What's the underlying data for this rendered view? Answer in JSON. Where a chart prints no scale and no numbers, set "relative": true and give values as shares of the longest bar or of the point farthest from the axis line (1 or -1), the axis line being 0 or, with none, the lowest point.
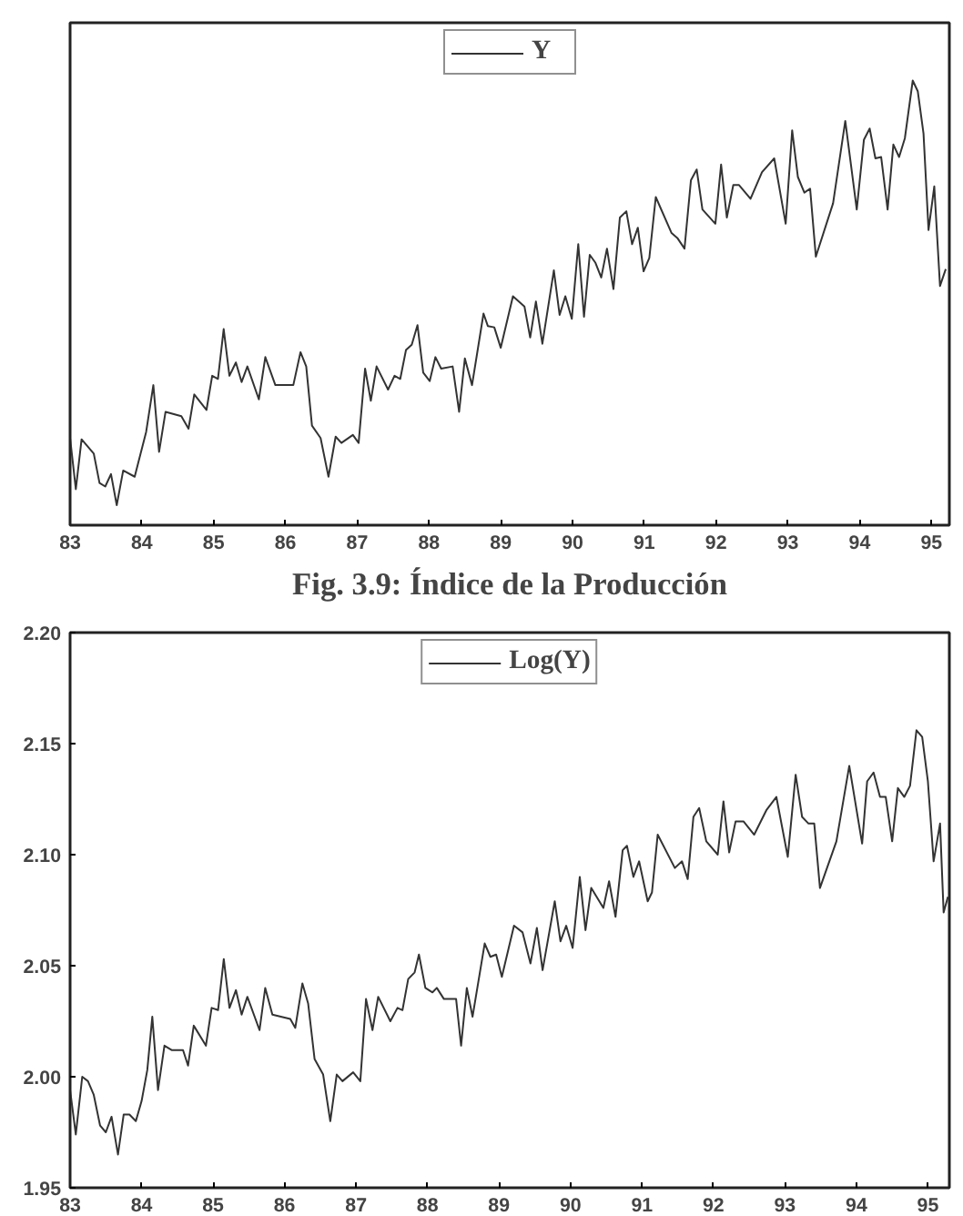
{
  "chart_data": [
    {
      "type": "line",
      "relative": true,
      "xlim": [
        83,
        95.25
      ],
      "xticks": [
        83,
        84,
        85,
        86,
        87,
        88,
        89,
        90,
        91,
        92,
        93,
        94,
        95
      ],
      "tick_labels": "x",
      "legend": "top",
      "grid": false,
      "annotations": [
        "Fig. 3.9: Índice de la Producción"
      ],
      "series": [
        {
          "name": "Y",
          "color": "#333333",
          "x": [
            83.0,
            83.08,
            83.16,
            83.33,
            83.41,
            83.49,
            83.57,
            83.65,
            83.74,
            83.9,
            84.06,
            84.16,
            84.24,
            84.33,
            84.55,
            84.65,
            84.73,
            84.9,
            84.98,
            85.06,
            85.14,
            85.22,
            85.31,
            85.39,
            85.47,
            85.63,
            85.72,
            85.86,
            86.11,
            86.21,
            86.29,
            86.37,
            86.49,
            86.6,
            86.7,
            86.78,
            86.94,
            87.02,
            87.11,
            87.19,
            87.27,
            87.43,
            87.52,
            87.6,
            87.68,
            87.76,
            87.84,
            87.92,
            88.01,
            88.09,
            88.17,
            88.33,
            88.42,
            88.5,
            88.6,
            88.76,
            88.82,
            88.91,
            89.0,
            89.17,
            89.33,
            89.41,
            89.49,
            89.58,
            89.74,
            89.82,
            89.9,
            89.99,
            90.08,
            90.16,
            90.24,
            90.32,
            90.4,
            90.48,
            90.57,
            90.66,
            90.75,
            90.83,
            90.91,
            90.99,
            91.07,
            91.16,
            91.38,
            91.46,
            91.56,
            91.65,
            91.73,
            91.81,
            91.99,
            92.07,
            92.15,
            92.24,
            92.32,
            92.48,
            92.64,
            92.81,
            92.97,
            93.06,
            93.14,
            93.23,
            93.31,
            93.39,
            93.63,
            93.8,
            93.96,
            94.06,
            94.14,
            94.22,
            94.3,
            94.39,
            94.47,
            94.55,
            94.63,
            94.74,
            94.81,
            94.89,
            94.96,
            95.04,
            95.12,
            95.2
          ],
          "values": [
            0.196,
            0.081,
            0.193,
            0.161,
            0.095,
            0.087,
            0.115,
            0.045,
            0.123,
            0.109,
            0.21,
            0.315,
            0.165,
            0.255,
            0.245,
            0.217,
            0.294,
            0.259,
            0.336,
            0.329,
            0.441,
            0.336,
            0.366,
            0.322,
            0.357,
            0.283,
            0.378,
            0.315,
            0.315,
            0.389,
            0.357,
            0.224,
            0.196,
            0.109,
            0.199,
            0.185,
            0.203,
            0.185,
            0.352,
            0.28,
            0.357,
            0.305,
            0.336,
            0.329,
            0.394,
            0.406,
            0.45,
            0.343,
            0.324,
            0.378,
            0.352,
            0.357,
            0.255,
            0.375,
            0.315,
            0.476,
            0.448,
            0.445,
            0.399,
            0.515,
            0.492,
            0.422,
            0.503,
            0.408,
            0.573,
            0.473,
            0.515,
            0.464,
            0.632,
            0.469,
            0.608,
            0.59,
            0.557,
            0.622,
            0.531,
            0.692,
            0.706,
            0.632,
            0.669,
            0.571,
            0.601,
            0.738,
            0.657,
            0.646,
            0.622,
            0.776,
            0.8,
            0.71,
            0.678,
            0.811,
            0.692,
            0.765,
            0.765,
            0.734,
            0.794,
            0.825,
            0.678,
            0.888,
            0.783,
            0.748,
            0.757,
            0.604,
            0.724,
            0.909,
            0.71,
            0.867,
            0.892,
            0.825,
            0.828,
            0.71,
            0.856,
            0.828,
            0.87,
            1.0,
            0.976,
            0.881,
            0.664,
            0.762,
            0.538,
            0.576
          ]
        }
      ]
    },
    {
      "type": "line",
      "xlim": [
        83,
        95.3
      ],
      "xticks": [
        83,
        84,
        85,
        86,
        87,
        88,
        89,
        90,
        91,
        92,
        93,
        94,
        95
      ],
      "ylim": [
        1.95,
        2.2
      ],
      "yticks": [
        {
          "value": 1.95,
          "label": "1.95"
        },
        {
          "value": 2.0,
          "label": "2.00"
        },
        {
          "value": 2.05,
          "label": "2.05"
        },
        {
          "value": 2.1,
          "label": "2.10"
        },
        {
          "value": 2.15,
          "label": "2.15"
        },
        {
          "value": 2.2,
          "label": "2.20"
        }
      ],
      "legend": "top",
      "grid": false,
      "series": [
        {
          "name": "Log(Y)",
          "color": "#333333",
          "x": [
            83.0,
            83.08,
            83.17,
            83.25,
            83.33,
            83.42,
            83.5,
            83.58,
            83.67,
            83.75,
            83.83,
            83.92,
            84.0,
            84.08,
            84.15,
            84.23,
            84.32,
            84.42,
            84.58,
            84.65,
            84.73,
            84.9,
            84.98,
            85.07,
            85.15,
            85.23,
            85.32,
            85.4,
            85.48,
            85.65,
            85.73,
            85.83,
            86.08,
            86.15,
            86.25,
            86.33,
            86.42,
            86.54,
            86.64,
            86.73,
            86.81,
            86.96,
            87.06,
            87.14,
            87.23,
            87.31,
            87.48,
            87.58,
            87.65,
            87.73,
            87.82,
            87.88,
            87.97,
            88.07,
            88.13,
            88.23,
            88.4,
            88.47,
            88.55,
            88.63,
            88.8,
            88.88,
            88.96,
            89.04,
            89.21,
            89.33,
            89.44,
            89.53,
            89.61,
            89.78,
            89.86,
            89.94,
            90.03,
            90.13,
            90.21,
            90.29,
            90.46,
            90.54,
            90.63,
            90.73,
            90.79,
            90.88,
            90.96,
            91.08,
            91.14,
            91.22,
            91.46,
            91.56,
            91.64,
            91.72,
            91.8,
            91.9,
            92.06,
            92.14,
            92.22,
            92.31,
            92.42,
            92.57,
            92.74,
            92.88,
            93.04,
            93.15,
            93.24,
            93.33,
            93.41,
            93.49,
            93.72,
            93.9,
            94.08,
            94.15,
            94.24,
            94.33,
            94.41,
            94.5,
            94.58,
            94.67,
            94.75,
            94.84,
            94.92,
            95.0,
            95.08,
            95.17,
            95.22,
            95.28
          ],
          "values": [
            1.994,
            1.974,
            2.0,
            1.998,
            1.992,
            1.978,
            1.975,
            1.982,
            1.965,
            1.983,
            1.983,
            1.98,
            1.989,
            2.003,
            2.027,
            1.994,
            2.014,
            2.012,
            2.012,
            2.005,
            2.023,
            2.014,
            2.031,
            2.03,
            2.053,
            2.031,
            2.039,
            2.028,
            2.036,
            2.021,
            2.04,
            2.028,
            2.026,
            2.022,
            2.042,
            2.033,
            2.008,
            2.001,
            1.98,
            2.001,
            1.998,
            2.002,
            1.998,
            2.035,
            2.021,
            2.036,
            2.025,
            2.031,
            2.03,
            2.044,
            2.047,
            2.055,
            2.04,
            2.038,
            2.04,
            2.035,
            2.035,
            2.014,
            2.04,
            2.027,
            2.06,
            2.054,
            2.055,
            2.045,
            2.068,
            2.065,
            2.051,
            2.067,
            2.048,
            2.079,
            2.061,
            2.068,
            2.058,
            2.09,
            2.066,
            2.085,
            2.076,
            2.088,
            2.072,
            2.102,
            2.104,
            2.09,
            2.097,
            2.079,
            2.083,
            2.109,
            2.094,
            2.097,
            2.089,
            2.117,
            2.121,
            2.106,
            2.1,
            2.124,
            2.101,
            2.115,
            2.115,
            2.109,
            2.12,
            2.126,
            2.099,
            2.136,
            2.117,
            2.114,
            2.114,
            2.085,
            2.106,
            2.14,
            2.105,
            2.133,
            2.137,
            2.126,
            2.126,
            2.106,
            2.13,
            2.126,
            2.131,
            2.156,
            2.153,
            2.133,
            2.097,
            2.114,
            2.074,
            2.081
          ]
        }
      ]
    }
  ]
}
